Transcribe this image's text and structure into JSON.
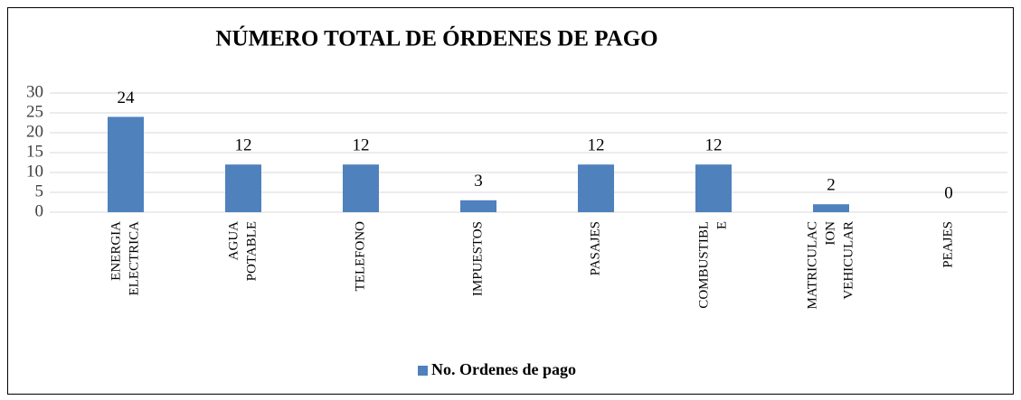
{
  "chart_data": {
    "type": "bar",
    "title": "NÚMERO TOTAL DE ÓRDENES DE PAGO",
    "categories": [
      [
        "ENERGIA",
        "ELECTRICA"
      ],
      [
        "AGUA",
        "POTABLE"
      ],
      [
        "TELEFONO"
      ],
      [
        "IMPUESTOS"
      ],
      [
        "PASAJES"
      ],
      [
        "COMBUSTIBL",
        "E"
      ],
      [
        "MATRICULAC",
        "ION",
        "VEHICULAR"
      ],
      [
        "PEAJES"
      ]
    ],
    "series": [
      {
        "name": "No. Ordenes de pago",
        "color": "#4f81bd",
        "values": [
          24,
          12,
          12,
          3,
          12,
          12,
          2,
          0
        ]
      }
    ],
    "ylim": [
      0,
      30
    ],
    "yticks": [
      0,
      5,
      10,
      15,
      20,
      25,
      30
    ],
    "grid": true,
    "legend": "bottom"
  }
}
